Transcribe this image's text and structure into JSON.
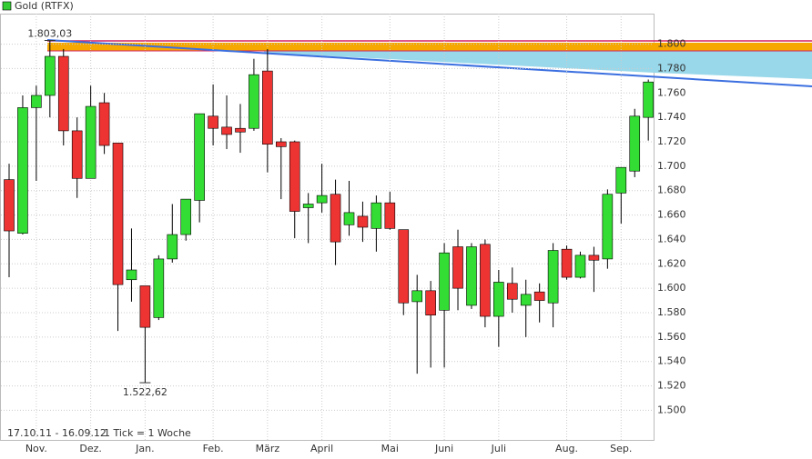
{
  "chart_data": {
    "type": "candlestick",
    "title": "Gold (RTFX)",
    "legend_color": "#33cc33",
    "up_color": "#33dd33",
    "down_color": "#ee3333",
    "categories": [
      null,
      null,
      "Nov.",
      null,
      null,
      null,
      "Dez.",
      null,
      null,
      null,
      "Jan.",
      null,
      null,
      null,
      null,
      "Feb.",
      null,
      null,
      null,
      "März",
      null,
      null,
      null,
      "April",
      null,
      null,
      null,
      null,
      "Mai",
      null,
      null,
      null,
      "Juni",
      null,
      null,
      null,
      "Juli",
      null,
      null,
      null,
      null,
      "Aug.",
      null,
      null,
      null,
      "Sep.",
      null,
      null
    ],
    "series": [
      {
        "name": "Gold (RTFX)",
        "open": [
          1689,
          1645,
          1748,
          1758,
          1790,
          1729,
          1690,
          1752,
          1719,
          1607,
          1602,
          1576,
          1624,
          1644,
          1672,
          1741,
          1732,
          1731,
          1731,
          1778,
          1720,
          1720,
          1666,
          1670,
          1677,
          1652,
          1659,
          1649,
          1670,
          1648,
          1589,
          1598,
          1582,
          1634,
          1586,
          1636,
          1577,
          1604,
          1586,
          1597,
          1588,
          1632,
          1609,
          1627,
          1624,
          1678,
          1696,
          1740
        ],
        "high": [
          1702,
          1758,
          1766,
          1803.03,
          1796,
          1740,
          1766,
          1760,
          1719,
          1649,
          1602,
          1627,
          1669,
          1673,
          1743,
          1767,
          1758,
          1751,
          1788,
          1796,
          1723,
          1721,
          1678,
          1702,
          1689,
          1688,
          1671,
          1676,
          1679,
          1648,
          1611,
          1606,
          1637,
          1648,
          1637,
          1640,
          1615,
          1617,
          1607,
          1604,
          1637,
          1635,
          1630,
          1634,
          1681,
          1699,
          1747,
          1771
        ],
        "low": [
          1609,
          1644,
          1688,
          1740,
          1717,
          1674,
          1690,
          1710,
          1565,
          1589,
          1522.62,
          1574,
          1621,
          1639,
          1654,
          1717,
          1714,
          1711,
          1729,
          1695,
          1673,
          1641,
          1637,
          1662,
          1619,
          1643,
          1638,
          1630,
          1648,
          1578,
          1530,
          1535,
          1535,
          1582,
          1583,
          1568,
          1552,
          1580,
          1560,
          1572,
          1568,
          1607,
          1608,
          1597,
          1616,
          1653,
          1691,
          1721
        ],
        "close": [
          1647,
          1748,
          1758,
          1790,
          1729,
          1690,
          1749,
          1717,
          1603,
          1615,
          1568,
          1624,
          1644,
          1673,
          1743,
          1731,
          1726,
          1728,
          1775,
          1718,
          1716,
          1663,
          1669,
          1676,
          1638,
          1662,
          1650,
          1670,
          1649,
          1588,
          1598,
          1578,
          1629,
          1600,
          1634,
          1577,
          1605,
          1591,
          1595,
          1590,
          1631,
          1609,
          1627,
          1623,
          1677,
          1699,
          1741,
          1769
        ]
      }
    ],
    "annotations": [
      {
        "label": "1.803,03",
        "value": 1803.03
      },
      {
        "label": "1.522,62",
        "value": 1522.62
      }
    ],
    "footer": [
      "17.10.11 - 16.09.12",
      "1 Tick = 1 Woche"
    ],
    "ylim": [
      1475,
      1825
    ],
    "yticks": [
      {
        "value": 1500,
        "label": "1.500"
      },
      {
        "value": 1520,
        "label": "1.520"
      },
      {
        "value": 1540,
        "label": "1.540"
      },
      {
        "value": 1560,
        "label": "1.560"
      },
      {
        "value": 1580,
        "label": "1.580"
      },
      {
        "value": 1600,
        "label": "1.600"
      },
      {
        "value": 1620,
        "label": "1.620"
      },
      {
        "value": 1640,
        "label": "1.640"
      },
      {
        "value": 1660,
        "label": "1.660"
      },
      {
        "value": 1680,
        "label": "1.680"
      },
      {
        "value": 1700,
        "label": "1.700"
      },
      {
        "value": 1720,
        "label": "1.720"
      },
      {
        "value": 1740,
        "label": "1.740"
      },
      {
        "value": 1760,
        "label": "1.760"
      },
      {
        "value": 1780,
        "label": "1.780"
      },
      {
        "value": 1800,
        "label": "1.800"
      }
    ],
    "grid": true
  }
}
